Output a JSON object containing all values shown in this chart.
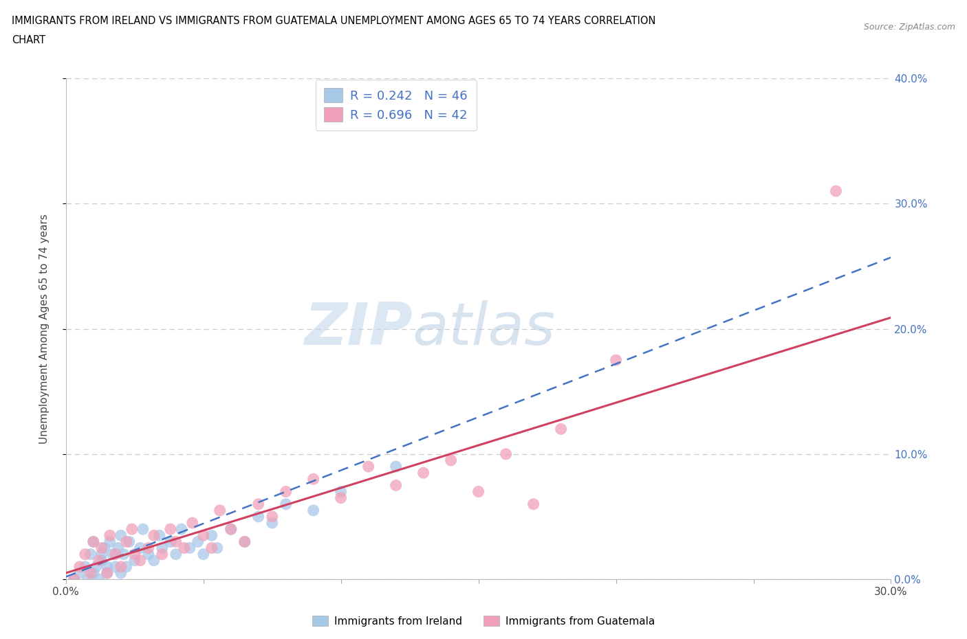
{
  "title": "IMMIGRANTS FROM IRELAND VS IMMIGRANTS FROM GUATEMALA UNEMPLOYMENT AMONG AGES 65 TO 74 YEARS CORRELATION\nCHART",
  "source": "Source: ZipAtlas.com",
  "ylabel": "Unemployment Among Ages 65 to 74 years",
  "ireland_color": "#a8c8e8",
  "guatemala_color": "#f0a0b8",
  "ireland_line_color": "#4472c4",
  "guatemala_line_color": "#d04060",
  "ireland_R": 0.242,
  "ireland_N": 46,
  "guatemala_R": 0.696,
  "guatemala_N": 42,
  "xlim": [
    0.0,
    0.3
  ],
  "ylim": [
    0.0,
    0.4
  ],
  "xticks": [
    0.0,
    0.05,
    0.1,
    0.15,
    0.2,
    0.25,
    0.3
  ],
  "yticks": [
    0.0,
    0.1,
    0.2,
    0.3,
    0.4
  ],
  "ytick_labels_right": [
    "0.0%",
    "10.0%",
    "20.0%",
    "30.0%",
    "40.0%"
  ],
  "xtick_labels": [
    "0.0%",
    "",
    "",
    "",
    "",
    "",
    "30.0%"
  ],
  "watermark_zip": "ZIP",
  "watermark_atlas": "atlas",
  "legend_label_ireland": "Immigrants from Ireland",
  "legend_label_guatemala": "Immigrants from Guatemala",
  "ireland_x": [
    0.003,
    0.005,
    0.007,
    0.008,
    0.009,
    0.01,
    0.01,
    0.011,
    0.012,
    0.013,
    0.013,
    0.014,
    0.015,
    0.015,
    0.016,
    0.017,
    0.018,
    0.019,
    0.02,
    0.02,
    0.021,
    0.022,
    0.023,
    0.025,
    0.027,
    0.028,
    0.03,
    0.032,
    0.034,
    0.035,
    0.038,
    0.04,
    0.042,
    0.045,
    0.048,
    0.05,
    0.053,
    0.055,
    0.06,
    0.065,
    0.07,
    0.075,
    0.08,
    0.09,
    0.1,
    0.12
  ],
  "ireland_y": [
    0.0,
    0.005,
    0.01,
    0.0,
    0.02,
    0.005,
    0.03,
    0.01,
    0.0,
    0.02,
    0.015,
    0.025,
    0.005,
    0.01,
    0.03,
    0.02,
    0.01,
    0.025,
    0.005,
    0.035,
    0.02,
    0.01,
    0.03,
    0.015,
    0.025,
    0.04,
    0.02,
    0.015,
    0.035,
    0.025,
    0.03,
    0.02,
    0.04,
    0.025,
    0.03,
    0.02,
    0.035,
    0.025,
    0.04,
    0.03,
    0.05,
    0.045,
    0.06,
    0.055,
    0.07,
    0.09
  ],
  "guatemala_x": [
    0.003,
    0.005,
    0.007,
    0.009,
    0.01,
    0.012,
    0.013,
    0.015,
    0.016,
    0.018,
    0.02,
    0.022,
    0.024,
    0.025,
    0.027,
    0.03,
    0.032,
    0.035,
    0.038,
    0.04,
    0.043,
    0.046,
    0.05,
    0.053,
    0.056,
    0.06,
    0.065,
    0.07,
    0.075,
    0.08,
    0.09,
    0.1,
    0.11,
    0.12,
    0.13,
    0.14,
    0.15,
    0.16,
    0.17,
    0.18,
    0.2,
    0.28
  ],
  "guatemala_y": [
    0.0,
    0.01,
    0.02,
    0.005,
    0.03,
    0.015,
    0.025,
    0.005,
    0.035,
    0.02,
    0.01,
    0.03,
    0.04,
    0.02,
    0.015,
    0.025,
    0.035,
    0.02,
    0.04,
    0.03,
    0.025,
    0.045,
    0.035,
    0.025,
    0.055,
    0.04,
    0.03,
    0.06,
    0.05,
    0.07,
    0.08,
    0.065,
    0.09,
    0.075,
    0.085,
    0.095,
    0.07,
    0.1,
    0.06,
    0.12,
    0.175,
    0.31
  ],
  "ireland_reg_slope": 0.85,
  "ireland_reg_intercept": 0.002,
  "guatemala_reg_slope": 0.68,
  "guatemala_reg_intercept": 0.005
}
